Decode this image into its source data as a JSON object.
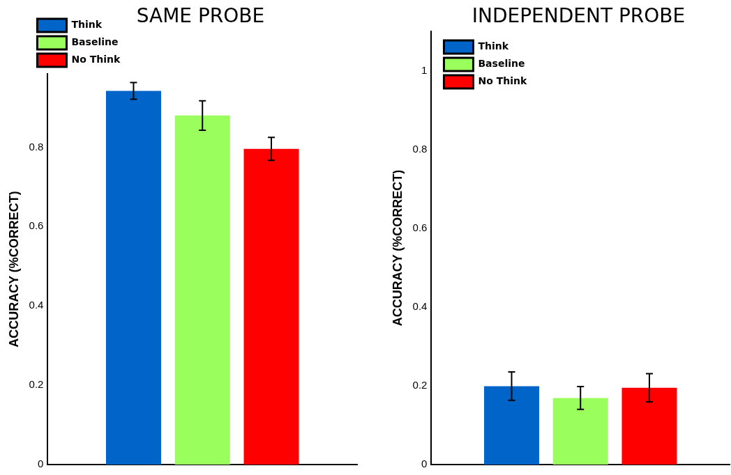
{
  "chart_data": [
    {
      "type": "bar",
      "title": "SAME PROBE",
      "ylabel": "ACCURACY (%CORRECT)",
      "categories": [
        null
      ],
      "series": [
        {
          "name": "Think",
          "color": "#0064c8",
          "values": [
            0.942
          ],
          "errors": [
            0.021
          ]
        },
        {
          "name": "Baseline",
          "color": "#9aff5c",
          "values": [
            0.88
          ],
          "errors": [
            0.037
          ]
        },
        {
          "name": "No Think",
          "color": "#ff0000",
          "values": [
            0.796
          ],
          "errors": [
            0.029
          ]
        }
      ],
      "ylim": [
        0,
        0.985
      ],
      "yticks": [
        0,
        0.2,
        0.4,
        0.6,
        0.8
      ],
      "legend": "top left",
      "tick_labels": "y",
      "grid": false
    },
    {
      "type": "bar",
      "title": "INDEPENDENT PROBE",
      "ylabel": "ACCURACY (%CORRECT)",
      "categories": [
        null
      ],
      "series": [
        {
          "name": "Think",
          "color": "#0064c8",
          "values": [
            0.199
          ],
          "errors": [
            0.036
          ]
        },
        {
          "name": "Baseline",
          "color": "#9aff5c",
          "values": [
            0.169
          ],
          "errors": [
            0.029
          ]
        },
        {
          "name": "No Think",
          "color": "#ff0000",
          "values": [
            0.195
          ],
          "errors": [
            0.036
          ]
        }
      ],
      "ylim": [
        0,
        1.1
      ],
      "yticks": [
        0,
        0.2,
        0.4,
        0.6,
        0.8,
        1
      ],
      "legend": "top left",
      "tick_labels": "y",
      "grid": false
    }
  ]
}
